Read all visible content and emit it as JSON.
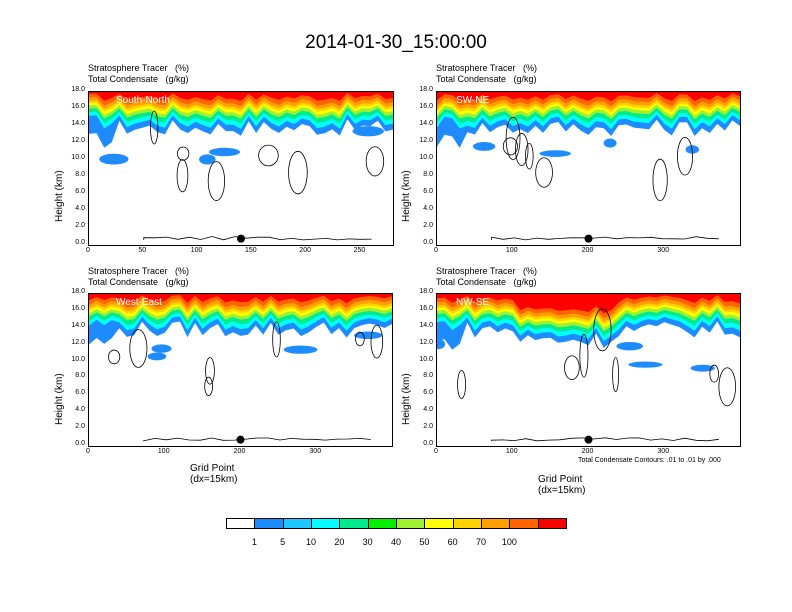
{
  "title": "2014-01-30_15:00:00",
  "panel_title_line1": "Stratosphere Tracer   (%)",
  "panel_title_line2": "Total Condensate   (g/kg)",
  "ylabel": "Height (km)",
  "xlabel": "Grid Point (dx=15km)",
  "contour_note": "Total Condensate Contours: .01 to .01 by .000",
  "colorbar": {
    "levels": [
      "1",
      "5",
      "10",
      "20",
      "30",
      "40",
      "50",
      "60",
      "70",
      "100"
    ],
    "colors": [
      "#ffffff",
      "#1e8cff",
      "#1ec8ff",
      "#00ffff",
      "#00ec8c",
      "#00f000",
      "#a0f032",
      "#ffff00",
      "#ffd200",
      "#ffa000",
      "#ff6400",
      "#ff0000"
    ]
  },
  "chart_data": [
    {
      "type": "heatmap",
      "region": "South-North",
      "y_ticks": [
        "0.0",
        "2.0",
        "4.0",
        "6.0",
        "8.0",
        "10.0",
        "12.0",
        "14.0",
        "16.0",
        "18.0"
      ],
      "ylim": [
        0,
        18
      ],
      "x_ticks": [
        "0",
        "50",
        "100",
        "150",
        "200",
        "250"
      ],
      "xlim": [
        0,
        280
      ],
      "marker_x": 140,
      "contour_label": ""
    },
    {
      "type": "heatmap",
      "region": "SW-NE",
      "y_ticks": [
        "0.0",
        "2.0",
        "4.0",
        "6.0",
        "8.0",
        "10.0",
        "12.0",
        "14.0",
        "16.0",
        "18.0"
      ],
      "ylim": [
        0,
        18
      ],
      "x_ticks": [
        "0",
        "100",
        "200",
        "300"
      ],
      "xlim": [
        0,
        400
      ],
      "marker_x": 200,
      "contour_label": ""
    },
    {
      "type": "heatmap",
      "region": "West-East",
      "y_ticks": [
        "0.0",
        "2.0",
        "4.0",
        "6.0",
        "8.0",
        "10.0",
        "12.0",
        "14.0",
        "16.0",
        "18.0"
      ],
      "ylim": [
        0,
        18
      ],
      "x_ticks": [
        "0",
        "100",
        "200",
        "300"
      ],
      "xlim": [
        0,
        400
      ],
      "marker_x": 200,
      "contour_label": ".01"
    },
    {
      "type": "heatmap",
      "region": "NW-SE",
      "y_ticks": [
        "0.0",
        "2.0",
        "4.0",
        "6.0",
        "8.0",
        "10.0",
        "12.0",
        "14.0",
        "16.0",
        "18.0"
      ],
      "ylim": [
        0,
        18
      ],
      "x_ticks": [
        "0",
        "100",
        "200",
        "300"
      ],
      "xlim": [
        0,
        400
      ],
      "marker_x": 200,
      "contour_label": ".01"
    }
  ]
}
